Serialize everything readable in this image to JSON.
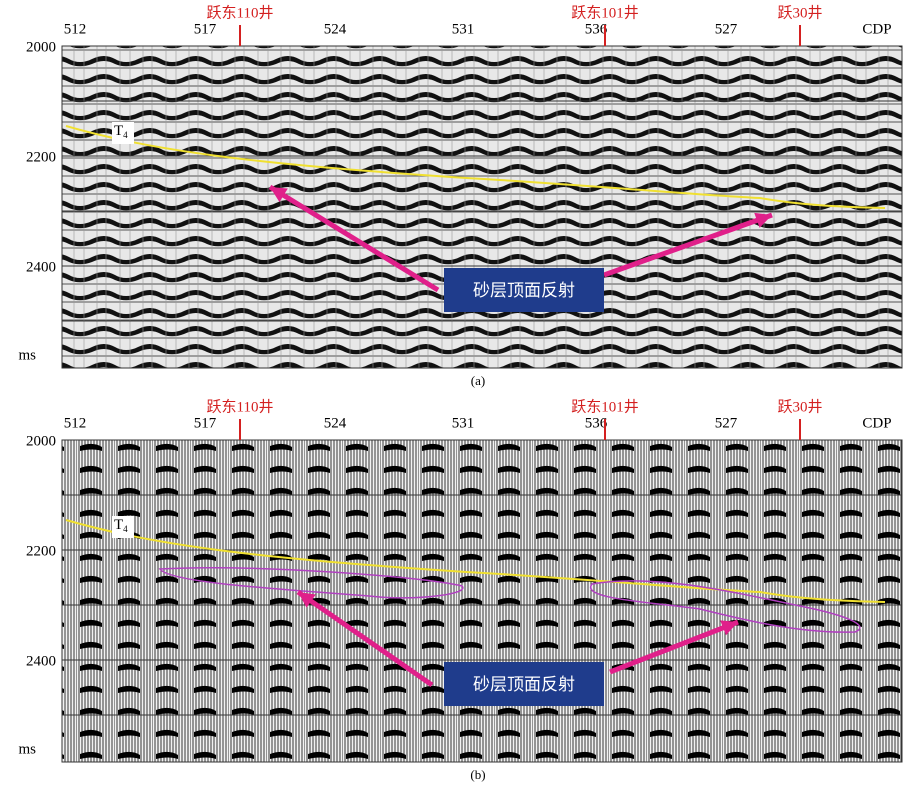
{
  "panels": [
    {
      "caption": "(a)",
      "cdp_labels": [
        "512",
        "517",
        "524",
        "531",
        "536",
        "527",
        "CDP"
      ],
      "wells": [
        "跃东110井",
        "跃东101井",
        "跃30井"
      ],
      "time_labels": [
        "2000",
        "2200",
        "2400"
      ],
      "unit": "ms",
      "horizon_label": {
        "text": "T",
        "sub": "4"
      },
      "annotation": "砂层顶面反射"
    },
    {
      "caption": "(b)",
      "cdp_labels": [
        "512",
        "517",
        "524",
        "531",
        "536",
        "527",
        "CDP"
      ],
      "wells": [
        "跃东110井",
        "跃东101井",
        "跃30井"
      ],
      "time_labels": [
        "2000",
        "2200",
        "2400"
      ],
      "unit": "ms",
      "horizon_label": {
        "text": "T",
        "sub": "4"
      },
      "annotation": "砂层顶面反射"
    }
  ]
}
